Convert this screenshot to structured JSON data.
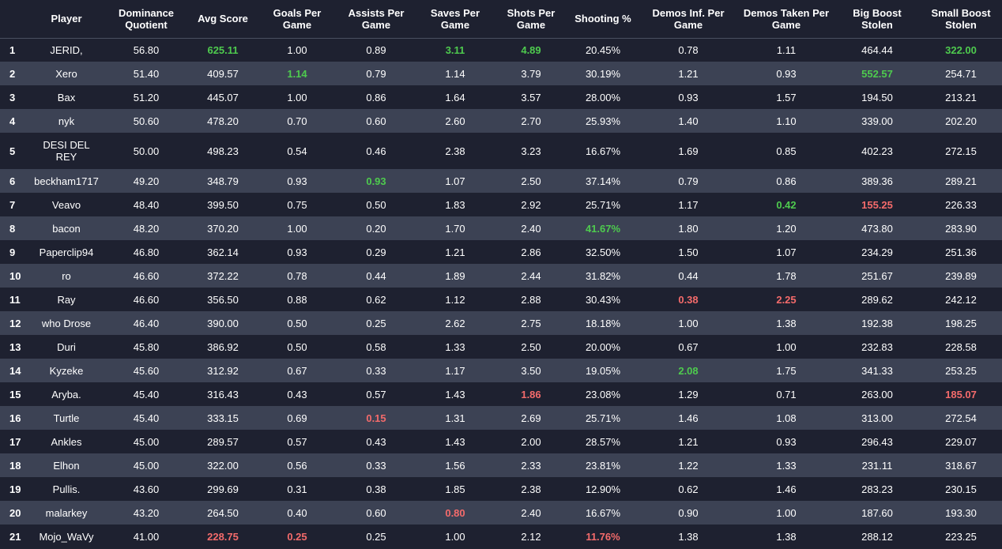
{
  "colors": {
    "background": "#1e2130",
    "row_alt": "#3c4254",
    "best": "#4ecb4e",
    "worst": "#f46b6b"
  },
  "columns": [
    "",
    "Player",
    "Dominance Quotient",
    "Avg Score",
    "Goals Per Game",
    "Assists Per Game",
    "Saves Per Game",
    "Shots Per Game",
    "Shooting %",
    "Demos Inf. Per Game",
    "Demos Taken Per Game",
    "Big Boost Stolen",
    "Small Boost Stolen"
  ],
  "rows": [
    {
      "cells": [
        "1",
        "JERID,",
        "56.80",
        "625.11",
        "1.00",
        "0.89",
        "3.11",
        "4.89",
        "20.45%",
        "0.78",
        "1.11",
        "464.44",
        "322.00"
      ],
      "hl": {
        "3": "green",
        "6": "green",
        "7": "green",
        "12": "green"
      }
    },
    {
      "cells": [
        "2",
        "Xero",
        "51.40",
        "409.57",
        "1.14",
        "0.79",
        "1.14",
        "3.79",
        "30.19%",
        "1.21",
        "0.93",
        "552.57",
        "254.71"
      ],
      "hl": {
        "4": "green",
        "11": "green"
      }
    },
    {
      "cells": [
        "3",
        "Bax",
        "51.20",
        "445.07",
        "1.00",
        "0.86",
        "1.64",
        "3.57",
        "28.00%",
        "0.93",
        "1.57",
        "194.50",
        "213.21"
      ],
      "hl": {}
    },
    {
      "cells": [
        "4",
        "nyk",
        "50.60",
        "478.20",
        "0.70",
        "0.60",
        "2.60",
        "2.70",
        "25.93%",
        "1.40",
        "1.10",
        "339.00",
        "202.20"
      ],
      "hl": {}
    },
    {
      "cells": [
        "5",
        "DESI DEL REY",
        "50.00",
        "498.23",
        "0.54",
        "0.46",
        "2.38",
        "3.23",
        "16.67%",
        "1.69",
        "0.85",
        "402.23",
        "272.15"
      ],
      "hl": {},
      "tall": true
    },
    {
      "cells": [
        "6",
        "beckham1717",
        "49.20",
        "348.79",
        "0.93",
        "0.93",
        "1.07",
        "2.50",
        "37.14%",
        "0.79",
        "0.86",
        "389.36",
        "289.21"
      ],
      "hl": {
        "5": "green"
      }
    },
    {
      "cells": [
        "7",
        "Veavo",
        "48.40",
        "399.50",
        "0.75",
        "0.50",
        "1.83",
        "2.92",
        "25.71%",
        "1.17",
        "0.42",
        "155.25",
        "226.33"
      ],
      "hl": {
        "10": "green",
        "11": "red"
      }
    },
    {
      "cells": [
        "8",
        "bacon",
        "48.20",
        "370.20",
        "1.00",
        "0.20",
        "1.70",
        "2.40",
        "41.67%",
        "1.80",
        "1.20",
        "473.80",
        "283.90"
      ],
      "hl": {
        "8": "green"
      }
    },
    {
      "cells": [
        "9",
        "Paperclip94",
        "46.80",
        "362.14",
        "0.93",
        "0.29",
        "1.21",
        "2.86",
        "32.50%",
        "1.50",
        "1.07",
        "234.29",
        "251.36"
      ],
      "hl": {}
    },
    {
      "cells": [
        "10",
        "ro",
        "46.60",
        "372.22",
        "0.78",
        "0.44",
        "1.89",
        "2.44",
        "31.82%",
        "0.44",
        "1.78",
        "251.67",
        "239.89"
      ],
      "hl": {}
    },
    {
      "cells": [
        "11",
        "Ray",
        "46.60",
        "356.50",
        "0.88",
        "0.62",
        "1.12",
        "2.88",
        "30.43%",
        "0.38",
        "2.25",
        "289.62",
        "242.12"
      ],
      "hl": {
        "9": "red",
        "10": "red"
      }
    },
    {
      "cells": [
        "12",
        "who Drose",
        "46.40",
        "390.00",
        "0.50",
        "0.25",
        "2.62",
        "2.75",
        "18.18%",
        "1.00",
        "1.38",
        "192.38",
        "198.25"
      ],
      "hl": {}
    },
    {
      "cells": [
        "13",
        "Duri",
        "45.80",
        "386.92",
        "0.50",
        "0.58",
        "1.33",
        "2.50",
        "20.00%",
        "0.67",
        "1.00",
        "232.83",
        "228.58"
      ],
      "hl": {}
    },
    {
      "cells": [
        "14",
        "Kyzeke",
        "45.60",
        "312.92",
        "0.67",
        "0.33",
        "1.17",
        "3.50",
        "19.05%",
        "2.08",
        "1.75",
        "341.33",
        "253.25"
      ],
      "hl": {
        "9": "green"
      }
    },
    {
      "cells": [
        "15",
        "Aryba.",
        "45.40",
        "316.43",
        "0.43",
        "0.57",
        "1.43",
        "1.86",
        "23.08%",
        "1.29",
        "0.71",
        "263.00",
        "185.07"
      ],
      "hl": {
        "7": "red",
        "12": "red"
      }
    },
    {
      "cells": [
        "16",
        "Turtle",
        "45.40",
        "333.15",
        "0.69",
        "0.15",
        "1.31",
        "2.69",
        "25.71%",
        "1.46",
        "1.08",
        "313.00",
        "272.54"
      ],
      "hl": {
        "5": "red"
      }
    },
    {
      "cells": [
        "17",
        "Ankles",
        "45.00",
        "289.57",
        "0.57",
        "0.43",
        "1.43",
        "2.00",
        "28.57%",
        "1.21",
        "0.93",
        "296.43",
        "229.07"
      ],
      "hl": {}
    },
    {
      "cells": [
        "18",
        "Elhon",
        "45.00",
        "322.00",
        "0.56",
        "0.33",
        "1.56",
        "2.33",
        "23.81%",
        "1.22",
        "1.33",
        "231.11",
        "318.67"
      ],
      "hl": {}
    },
    {
      "cells": [
        "19",
        "Pullis.",
        "43.60",
        "299.69",
        "0.31",
        "0.38",
        "1.85",
        "2.38",
        "12.90%",
        "0.62",
        "1.46",
        "283.23",
        "230.15"
      ],
      "hl": {}
    },
    {
      "cells": [
        "20",
        "malarkey",
        "43.20",
        "264.50",
        "0.40",
        "0.60",
        "0.80",
        "2.40",
        "16.67%",
        "0.90",
        "1.00",
        "187.60",
        "193.30"
      ],
      "hl": {
        "6": "red"
      }
    },
    {
      "cells": [
        "21",
        "Mojo_WaVy",
        "41.00",
        "228.75",
        "0.25",
        "0.25",
        "1.00",
        "2.12",
        "11.76%",
        "1.38",
        "1.38",
        "288.12",
        "223.25"
      ],
      "hl": {
        "3": "red",
        "4": "red",
        "8": "red"
      }
    }
  ]
}
